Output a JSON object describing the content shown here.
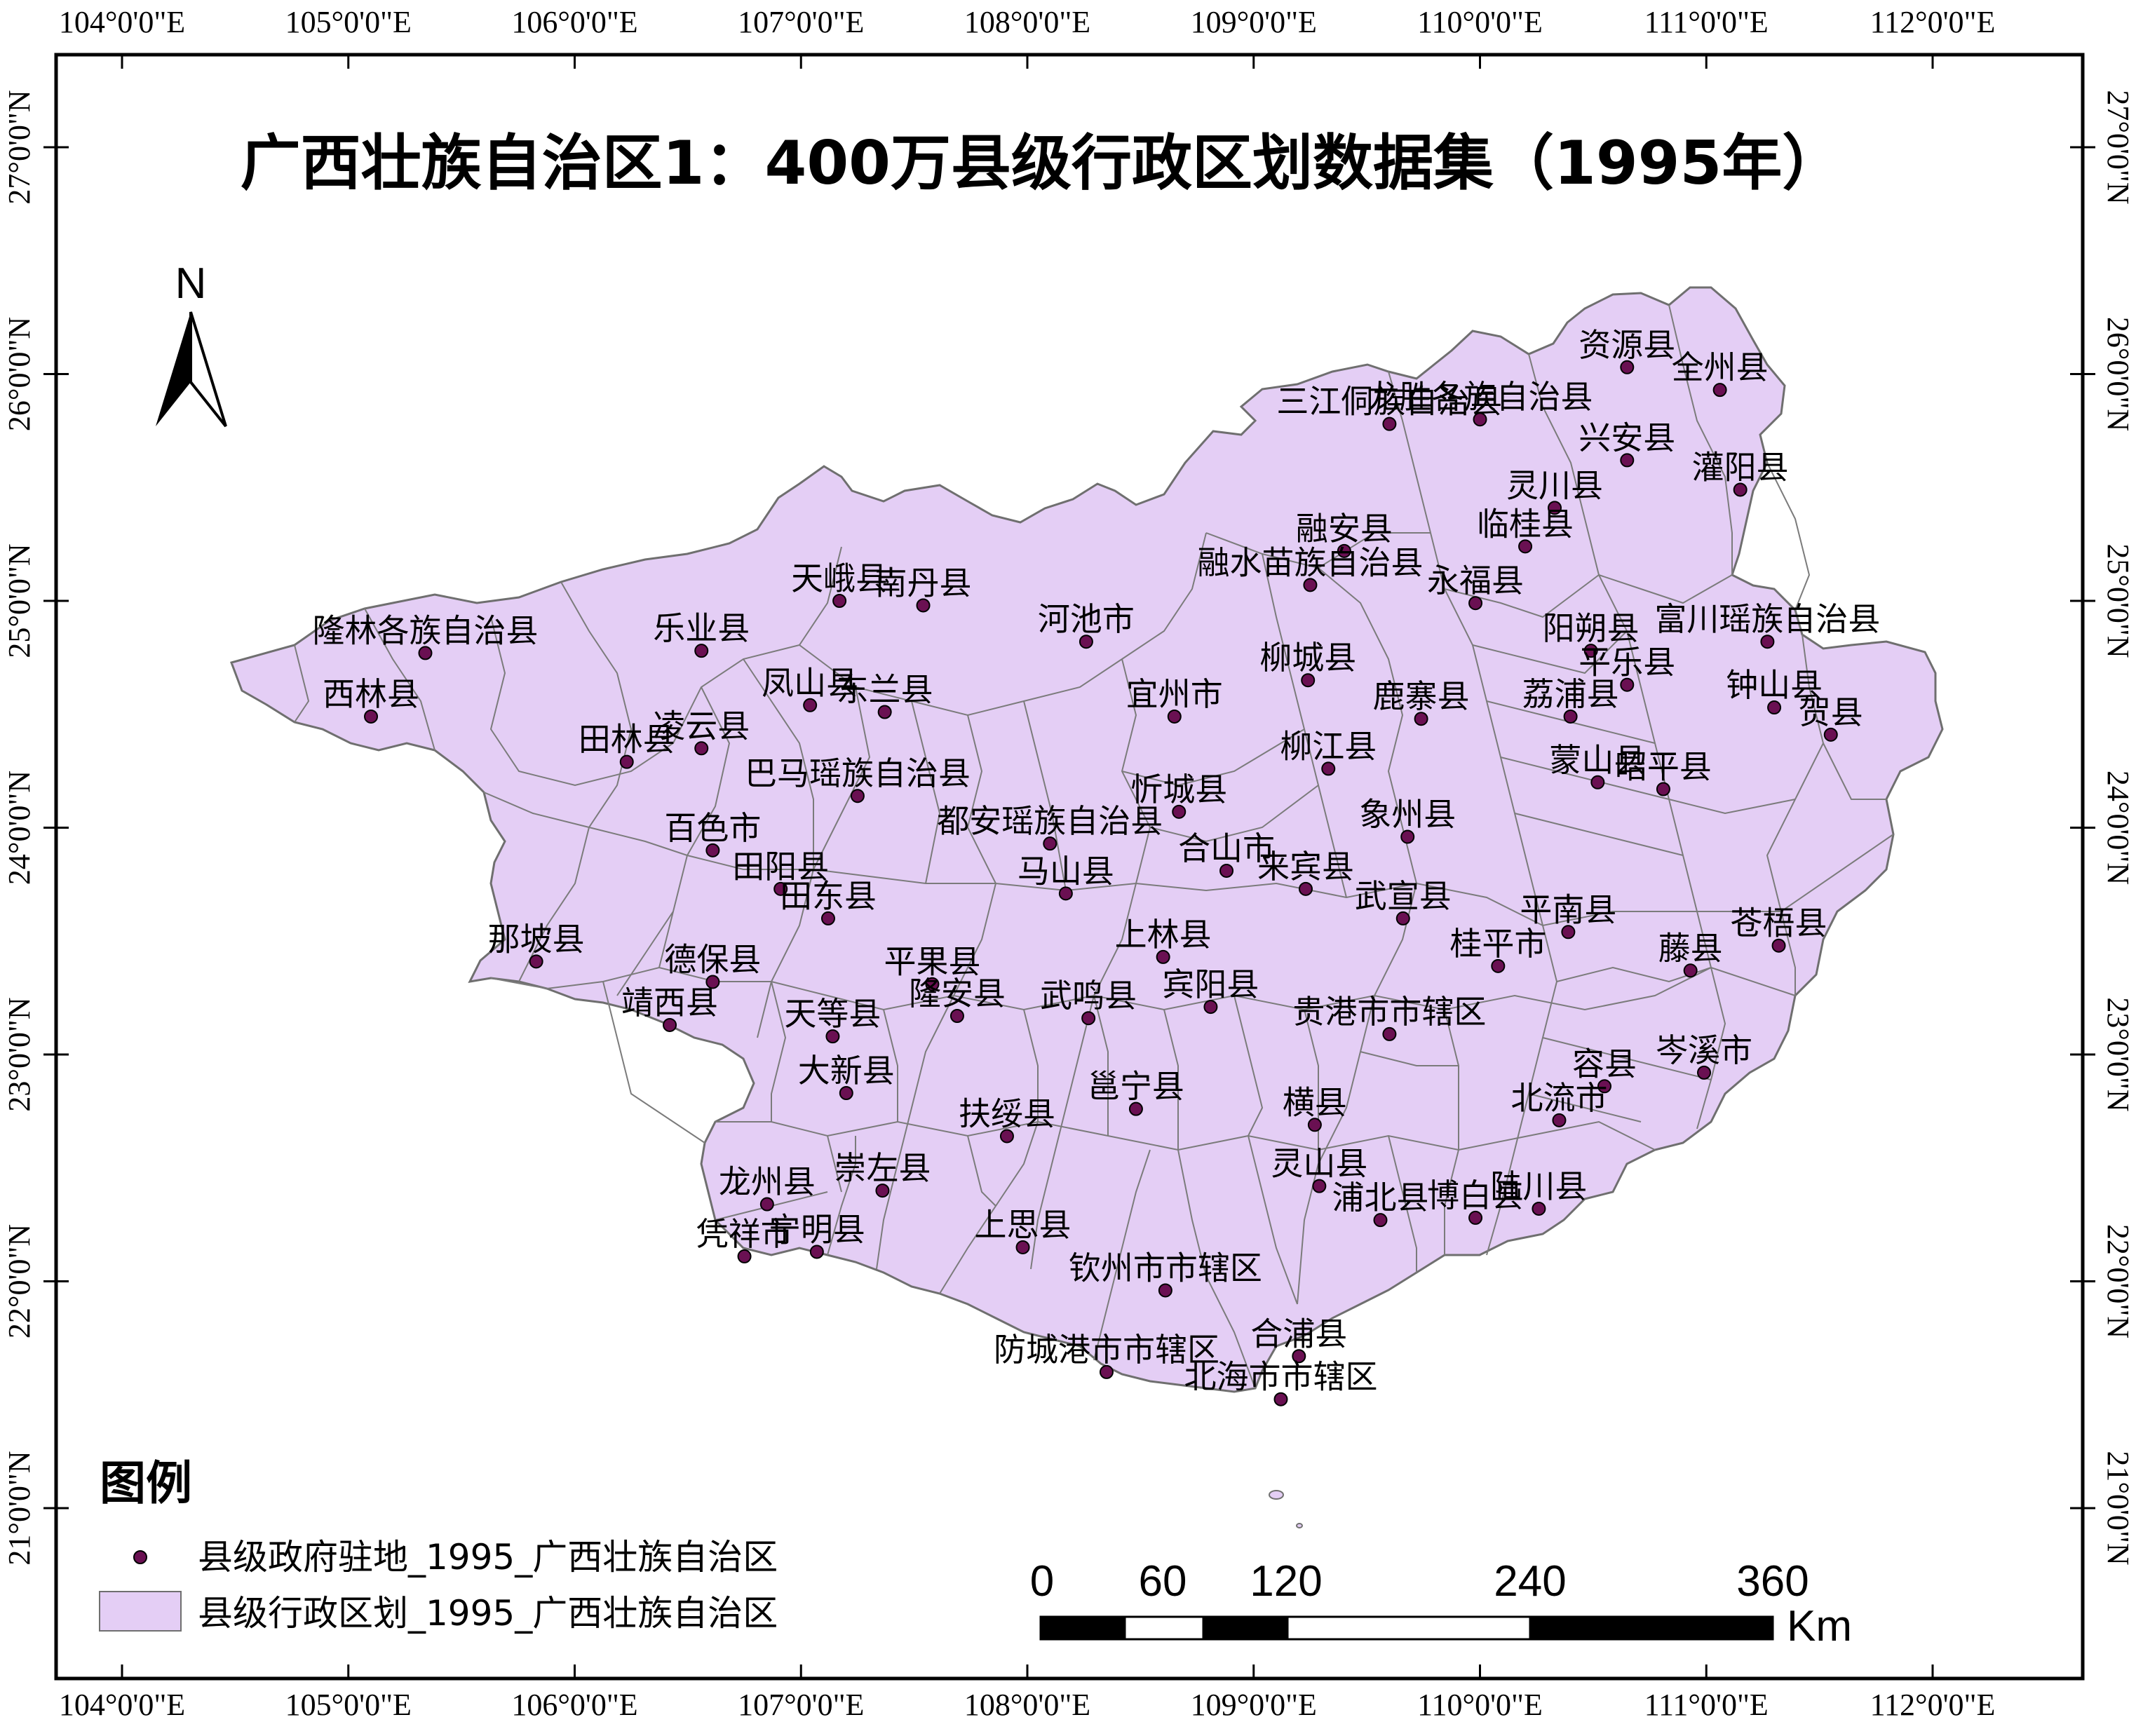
{
  "title": "广西壮族自治区1：400万县级行政区划数据集（1995年）",
  "north_arrow_label": "N",
  "colors": {
    "region_fill": "#e4cef5",
    "region_stroke": "#6f6f6f",
    "point_fill": "#6a1052",
    "frame": "#000000"
  },
  "axes": {
    "top_labels": [
      "104°0'0\"E",
      "105°0'0\"E",
      "106°0'0\"E",
      "107°0'0\"E",
      "108°0'0\"E",
      "109°0'0\"E",
      "110°0'0\"E",
      "111°0'0\"E",
      "112°0'0\"E"
    ],
    "bottom_labels": [
      "104°0'0\"E",
      "105°0'0\"E",
      "106°0'0\"E",
      "107°0'0\"E",
      "108°0'0\"E",
      "109°0'0\"E",
      "110°0'0\"E",
      "111°0'0\"E",
      "112°0'0\"E"
    ],
    "left_labels": [
      "27°0'0\"N",
      "26°0'0\"N",
      "25°0'0\"N",
      "24°0'0\"N",
      "23°0'0\"N",
      "22°0'0\"N",
      "21°0'0\"N"
    ],
    "right_labels": [
      "27°0'0\"N",
      "26°0'0\"N",
      "25°0'0\"N",
      "24°0'0\"N",
      "23°0'0\"N",
      "22°0'0\"N",
      "21°0'0\"N"
    ]
  },
  "places": [
    {
      "name": "资源县",
      "lon": 110.65,
      "lat": 26.03
    },
    {
      "name": "全州县",
      "lon": 111.06,
      "lat": 25.93
    },
    {
      "name": "三江侗族自治县",
      "lon": 109.6,
      "lat": 25.78
    },
    {
      "name": "龙胜各族自治县",
      "lon": 110.0,
      "lat": 25.8
    },
    {
      "name": "兴安县",
      "lon": 110.65,
      "lat": 25.62
    },
    {
      "name": "灌阳县",
      "lon": 111.15,
      "lat": 25.49
    },
    {
      "name": "灵川县",
      "lon": 110.33,
      "lat": 25.41
    },
    {
      "name": "临桂县",
      "lon": 110.2,
      "lat": 25.24
    },
    {
      "name": "融安县",
      "lon": 109.4,
      "lat": 25.22
    },
    {
      "name": "融水苗族自治县",
      "lon": 109.25,
      "lat": 25.07
    },
    {
      "name": "永福县",
      "lon": 109.98,
      "lat": 24.99
    },
    {
      "name": "天峨县",
      "lon": 107.17,
      "lat": 25.0
    },
    {
      "name": "南丹县",
      "lon": 107.54,
      "lat": 24.98
    },
    {
      "name": "隆林各族自治县",
      "lon": 105.34,
      "lat": 24.77
    },
    {
      "name": "乐业县",
      "lon": 106.56,
      "lat": 24.78
    },
    {
      "name": "河池市",
      "lon": 108.26,
      "lat": 24.82
    },
    {
      "name": "阳朔县",
      "lon": 110.49,
      "lat": 24.78
    },
    {
      "name": "富川瑶族自治县",
      "lon": 111.27,
      "lat": 24.82
    },
    {
      "name": "西林县",
      "lon": 105.1,
      "lat": 24.49
    },
    {
      "name": "凤山县",
      "lon": 107.04,
      "lat": 24.54
    },
    {
      "name": "东兰县",
      "lon": 107.37,
      "lat": 24.51
    },
    {
      "name": "宜州市",
      "lon": 108.65,
      "lat": 24.49
    },
    {
      "name": "柳城县",
      "lon": 109.24,
      "lat": 24.65
    },
    {
      "name": "鹿寨县",
      "lon": 109.74,
      "lat": 24.48
    },
    {
      "name": "平乐县",
      "lon": 110.65,
      "lat": 24.63
    },
    {
      "name": "荔浦县",
      "lon": 110.4,
      "lat": 24.49
    },
    {
      "name": "贺县",
      "lon": 111.55,
      "lat": 24.41
    },
    {
      "name": "钟山县",
      "lon": 111.3,
      "lat": 24.53
    },
    {
      "name": "田林县",
      "lon": 106.23,
      "lat": 24.29
    },
    {
      "name": "凌云县",
      "lon": 106.56,
      "lat": 24.35
    },
    {
      "name": "巴马瑶族自治县",
      "lon": 107.25,
      "lat": 24.14
    },
    {
      "name": "柳江县",
      "lon": 109.33,
      "lat": 24.26
    },
    {
      "name": "忻城县",
      "lon": 108.67,
      "lat": 24.07
    },
    {
      "name": "昭平县",
      "lon": 110.81,
      "lat": 24.17
    },
    {
      "name": "蒙山县",
      "lon": 110.52,
      "lat": 24.2
    },
    {
      "name": "象州县",
      "lon": 109.68,
      "lat": 23.96
    },
    {
      "name": "百色市",
      "lon": 106.61,
      "lat": 23.9
    },
    {
      "name": "都安瑶族自治县",
      "lon": 108.1,
      "lat": 23.93
    },
    {
      "name": "合山市",
      "lon": 108.88,
      "lat": 23.81
    },
    {
      "name": "田阳县",
      "lon": 106.91,
      "lat": 23.73
    },
    {
      "name": "马山县",
      "lon": 108.17,
      "lat": 23.71
    },
    {
      "name": "来宾县",
      "lon": 109.23,
      "lat": 23.73
    },
    {
      "name": "平南县",
      "lon": 110.39,
      "lat": 23.54
    },
    {
      "name": "武宣县",
      "lon": 109.66,
      "lat": 23.6
    },
    {
      "name": "田东县",
      "lon": 107.12,
      "lat": 23.6
    },
    {
      "name": "上林县",
      "lon": 108.6,
      "lat": 23.43
    },
    {
      "name": "那坡县",
      "lon": 105.83,
      "lat": 23.41
    },
    {
      "name": "德保县",
      "lon": 106.61,
      "lat": 23.32
    },
    {
      "name": "平果县",
      "lon": 107.58,
      "lat": 23.31
    },
    {
      "name": "桂平市",
      "lon": 110.08,
      "lat": 23.39
    },
    {
      "name": "藤县",
      "lon": 110.93,
      "lat": 23.37
    },
    {
      "name": "苍梧县",
      "lon": 111.32,
      "lat": 23.48
    },
    {
      "name": "靖西县",
      "lon": 106.42,
      "lat": 23.13
    },
    {
      "name": "天等县",
      "lon": 107.14,
      "lat": 23.08
    },
    {
      "name": "隆安县",
      "lon": 107.69,
      "lat": 23.17
    },
    {
      "name": "武鸣县",
      "lon": 108.27,
      "lat": 23.16
    },
    {
      "name": "宾阳县",
      "lon": 108.81,
      "lat": 23.21
    },
    {
      "name": "贵港市市辖区",
      "lon": 109.6,
      "lat": 23.09
    },
    {
      "name": "岑溪市",
      "lon": 110.99,
      "lat": 22.92
    },
    {
      "name": "大新县",
      "lon": 107.2,
      "lat": 22.83
    },
    {
      "name": "容县",
      "lon": 110.55,
      "lat": 22.86
    },
    {
      "name": "扶绥县",
      "lon": 107.91,
      "lat": 22.64
    },
    {
      "name": "邕宁县",
      "lon": 108.48,
      "lat": 22.76
    },
    {
      "name": "横县",
      "lon": 109.27,
      "lat": 22.69
    },
    {
      "name": "北流市",
      "lon": 110.35,
      "lat": 22.71
    },
    {
      "name": "龙州县",
      "lon": 106.85,
      "lat": 22.34
    },
    {
      "name": "崇左县",
      "lon": 107.36,
      "lat": 22.4
    },
    {
      "name": "灵山县",
      "lon": 109.29,
      "lat": 22.42
    },
    {
      "name": "博白县",
      "lon": 109.98,
      "lat": 22.28
    },
    {
      "name": "陆川县",
      "lon": 110.26,
      "lat": 22.32
    },
    {
      "name": "浦北县",
      "lon": 109.56,
      "lat": 22.27
    },
    {
      "name": "凭祥市",
      "lon": 106.75,
      "lat": 22.11
    },
    {
      "name": "宁明县",
      "lon": 107.07,
      "lat": 22.13
    },
    {
      "name": "上思县",
      "lon": 107.98,
      "lat": 22.15
    },
    {
      "name": "钦州市市辖区",
      "lon": 108.61,
      "lat": 21.96
    },
    {
      "name": "防城港市市辖区",
      "lon": 108.35,
      "lat": 21.6
    },
    {
      "name": "合浦县",
      "lon": 109.2,
      "lat": 21.67
    },
    {
      "name": "北海市市辖区",
      "lon": 109.12,
      "lat": 21.48
    }
  ],
  "legend": {
    "title": "图例",
    "point_label": "县级政府驻地_1995_广西壮族自治区",
    "area_label": "县级行政区划_1995_广西壮族自治区"
  },
  "scale_bar": {
    "ticks": [
      "0",
      "60",
      "120",
      "240",
      "360"
    ],
    "unit": "Km"
  }
}
